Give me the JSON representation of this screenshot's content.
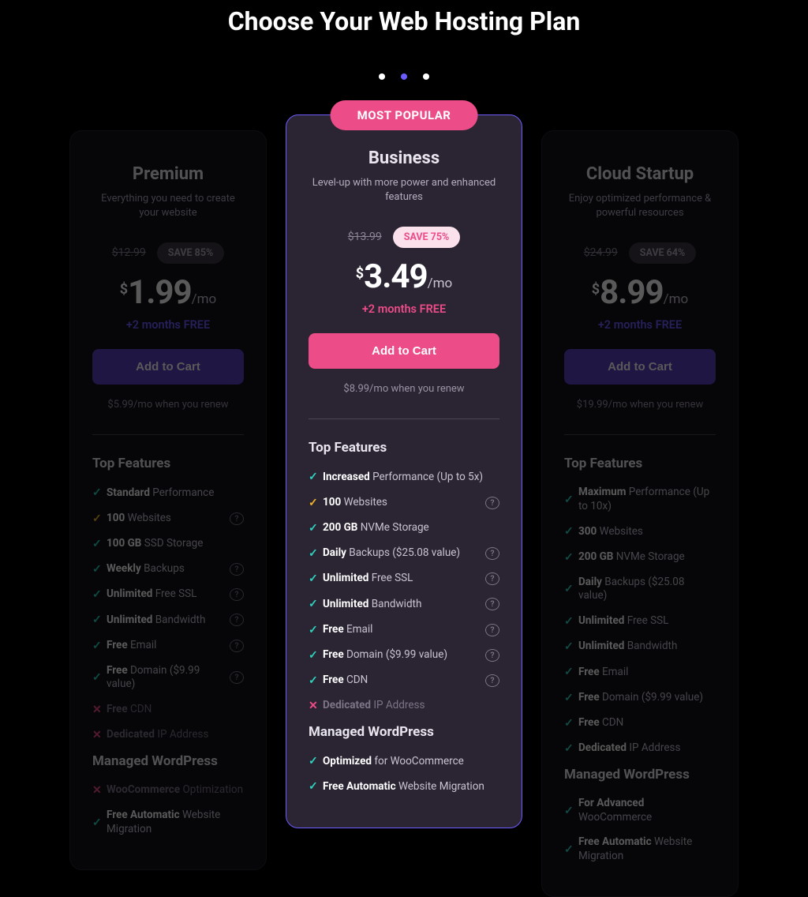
{
  "title": "Choose Your Web Hosting Plan",
  "carousel": {
    "active_index": 1,
    "count": 3
  },
  "colors": {
    "bg": "#000000",
    "card_bg": "#120f17",
    "featured_bg": "#2b2433",
    "featured_border": "#6b5cff",
    "pink": "#ec4c87",
    "purple": "#5a3fc0",
    "teal": "#2dd4bf",
    "amber": "#f0b429",
    "text_muted": "#9a93a5"
  },
  "badge": "MOST POPULAR",
  "currency": "$",
  "period": "/mo",
  "cta_label": "Add to Cart",
  "section_features": "Top Features",
  "section_wp": "Managed WordPress",
  "plans": {
    "premium": {
      "name": "Premium",
      "tagline": "Everything you need to create your website",
      "old_price": "$12.99",
      "save": "SAVE 85%",
      "price": "1.99",
      "bonus": "+2 months FREE",
      "renew": "$5.99/mo when you renew",
      "features": [
        {
          "icon": "check",
          "bold": "Standard",
          "rest": " Performance",
          "info": false
        },
        {
          "icon": "warn",
          "bold": "100",
          "rest": " Websites",
          "info": true
        },
        {
          "icon": "check",
          "bold": "100 GB",
          "rest": " SSD Storage",
          "info": false
        },
        {
          "icon": "check",
          "bold": "Weekly",
          "rest": " Backups",
          "info": true
        },
        {
          "icon": "check",
          "bold": "Unlimited",
          "rest": " Free SSL",
          "info": true
        },
        {
          "icon": "check",
          "bold": "Unlimited",
          "rest": " Bandwidth",
          "info": true
        },
        {
          "icon": "check",
          "bold": "Free",
          "rest": " Email",
          "info": true
        },
        {
          "icon": "check",
          "bold": "Free",
          "rest": " Domain ($9.99 value)",
          "info": true
        },
        {
          "icon": "x",
          "bold": "Free",
          "rest": " CDN",
          "info": false,
          "disabled": true
        },
        {
          "icon": "x",
          "bold": "Dedicated",
          "rest": " IP Address",
          "info": false,
          "disabled": true
        }
      ],
      "wp": [
        {
          "icon": "x",
          "bold": "WooCommerce",
          "rest": " Optimization",
          "disabled": true
        },
        {
          "icon": "check",
          "bold": "Free Automatic",
          "rest": " Website Migration"
        }
      ]
    },
    "business": {
      "name": "Business",
      "tagline": "Level-up with more power and enhanced features",
      "old_price": "$13.99",
      "save": "SAVE 75%",
      "price": "3.49",
      "bonus": "+2 months FREE",
      "renew": "$8.99/mo when you renew",
      "features": [
        {
          "icon": "check",
          "bold": "Increased",
          "rest": " Performance (Up to 5x)",
          "info": false
        },
        {
          "icon": "warn",
          "bold": "100",
          "rest": " Websites",
          "info": true
        },
        {
          "icon": "check",
          "bold": "200 GB",
          "rest": " NVMe Storage",
          "info": false
        },
        {
          "icon": "check",
          "bold": "Daily",
          "rest": " Backups ($25.08 value)",
          "info": true
        },
        {
          "icon": "check",
          "bold": "Unlimited",
          "rest": " Free SSL",
          "info": true
        },
        {
          "icon": "check",
          "bold": "Unlimited",
          "rest": " Bandwidth",
          "info": true
        },
        {
          "icon": "check",
          "bold": "Free",
          "rest": " Email",
          "info": true
        },
        {
          "icon": "check",
          "bold": "Free",
          "rest": " Domain ($9.99 value)",
          "info": true
        },
        {
          "icon": "check",
          "bold": "Free",
          "rest": " CDN",
          "info": true
        },
        {
          "icon": "x",
          "bold": "Dedicated",
          "rest": " IP Address",
          "info": false,
          "disabled": true
        }
      ],
      "wp": [
        {
          "icon": "check",
          "bold": "Optimized",
          "rest": " for WooCommerce"
        },
        {
          "icon": "check",
          "bold": "Free Automatic",
          "rest": " Website Migration"
        }
      ]
    },
    "cloud": {
      "name": "Cloud Startup",
      "tagline": "Enjoy optimized performance & powerful resources",
      "old_price": "$24.99",
      "save": "SAVE 64%",
      "price": "8.99",
      "bonus": "+2 months FREE",
      "renew": "$19.99/mo when you renew",
      "features": [
        {
          "icon": "check",
          "bold": "Maximum",
          "rest": " Performance (Up to 10x)",
          "info": false
        },
        {
          "icon": "check",
          "bold": "300",
          "rest": " Websites",
          "info": false
        },
        {
          "icon": "check",
          "bold": "200 GB",
          "rest": " NVMe Storage",
          "info": false
        },
        {
          "icon": "check",
          "bold": "Daily",
          "rest": " Backups ($25.08 value)",
          "info": false
        },
        {
          "icon": "check",
          "bold": "Unlimited",
          "rest": " Free SSL",
          "info": false
        },
        {
          "icon": "check",
          "bold": "Unlimited",
          "rest": " Bandwidth",
          "info": false
        },
        {
          "icon": "check",
          "bold": "Free",
          "rest": " Email",
          "info": false
        },
        {
          "icon": "check",
          "bold": "Free",
          "rest": " Domain ($9.99 value)",
          "info": false
        },
        {
          "icon": "check",
          "bold": "Free",
          "rest": " CDN",
          "info": false
        },
        {
          "icon": "check",
          "bold": "Dedicated",
          "rest": " IP Address",
          "info": false
        }
      ],
      "wp": [
        {
          "icon": "check",
          "bold": "For Advanced",
          "rest": " WooCommerce"
        },
        {
          "icon": "check",
          "bold": "Free Automatic",
          "rest": " Website Migration"
        }
      ]
    }
  }
}
